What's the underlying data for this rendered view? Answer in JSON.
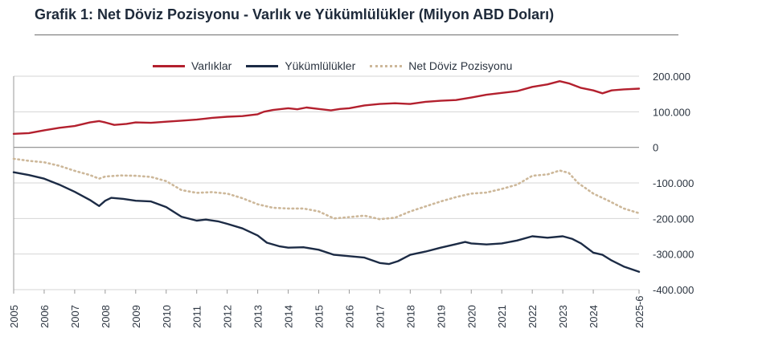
{
  "chart_data": {
    "type": "line",
    "title": "Grafik 1: Net Döviz Pozisyonu - Varlık ve Yükümlülükler (Milyon ABD Doları)",
    "ylim": [
      -400000,
      200000
    ],
    "yticks": [
      200000,
      100000,
      0,
      -100000,
      -200000,
      -300000,
      -400000
    ],
    "ytick_labels": [
      "200.000",
      "100.000",
      "0",
      "-100.000",
      "-200.000",
      "-300.000",
      "-400.000"
    ],
    "xlim": [
      2005,
      2025.5
    ],
    "xticks": [
      {
        "label": "2005",
        "value": 2005
      },
      {
        "label": "2006",
        "value": 2006
      },
      {
        "label": "2007",
        "value": 2007
      },
      {
        "label": "2008",
        "value": 2008
      },
      {
        "label": "2009",
        "value": 2009
      },
      {
        "label": "2010",
        "value": 2010
      },
      {
        "label": "2011",
        "value": 2011
      },
      {
        "label": "2012",
        "value": 2012
      },
      {
        "label": "2013",
        "value": 2013
      },
      {
        "label": "2014",
        "value": 2014
      },
      {
        "label": "2015",
        "value": 2015
      },
      {
        "label": "2016",
        "value": 2016
      },
      {
        "label": "2017",
        "value": 2017
      },
      {
        "label": "2018",
        "value": 2018
      },
      {
        "label": "2019",
        "value": 2019
      },
      {
        "label": "2020",
        "value": 2020
      },
      {
        "label": "2021",
        "value": 2021
      },
      {
        "label": "2022",
        "value": 2022
      },
      {
        "label": "2023",
        "value": 2023
      },
      {
        "label": "2024",
        "value": 2024
      },
      {
        "label": "2025-6",
        "value": 2025.5
      }
    ],
    "legend_position": "top",
    "grid": "horizontal",
    "series": [
      {
        "name": "Varlıklar",
        "color": "#b3202e",
        "style": "solid",
        "points": [
          [
            2005,
            38000
          ],
          [
            2005.5,
            40000
          ],
          [
            2006,
            48000
          ],
          [
            2006.5,
            55000
          ],
          [
            2007,
            60000
          ],
          [
            2007.5,
            70000
          ],
          [
            2007.8,
            74000
          ],
          [
            2008,
            70000
          ],
          [
            2008.3,
            63000
          ],
          [
            2008.7,
            66000
          ],
          [
            2009,
            70000
          ],
          [
            2009.5,
            69000
          ],
          [
            2010,
            72000
          ],
          [
            2010.5,
            75000
          ],
          [
            2011,
            78000
          ],
          [
            2011.5,
            83000
          ],
          [
            2012,
            86000
          ],
          [
            2012.5,
            88000
          ],
          [
            2013,
            93000
          ],
          [
            2013.2,
            100000
          ],
          [
            2013.5,
            105000
          ],
          [
            2014,
            110000
          ],
          [
            2014.3,
            107000
          ],
          [
            2014.6,
            112000
          ],
          [
            2015,
            108000
          ],
          [
            2015.4,
            104000
          ],
          [
            2015.7,
            108000
          ],
          [
            2016,
            110000
          ],
          [
            2016.5,
            118000
          ],
          [
            2017,
            122000
          ],
          [
            2017.5,
            124000
          ],
          [
            2018,
            122000
          ],
          [
            2018.5,
            128000
          ],
          [
            2019,
            131000
          ],
          [
            2019.5,
            133000
          ],
          [
            2020,
            140000
          ],
          [
            2020.5,
            148000
          ],
          [
            2021,
            153000
          ],
          [
            2021.5,
            158000
          ],
          [
            2022,
            170000
          ],
          [
            2022.5,
            177000
          ],
          [
            2022.9,
            186000
          ],
          [
            2023.2,
            180000
          ],
          [
            2023.6,
            167000
          ],
          [
            2024,
            160000
          ],
          [
            2024.3,
            152000
          ],
          [
            2024.6,
            160000
          ],
          [
            2025,
            163000
          ],
          [
            2025.5,
            165000
          ]
        ]
      },
      {
        "name": "Yükümlülükler",
        "color": "#1c2b45",
        "style": "solid",
        "points": [
          [
            2005,
            -70000
          ],
          [
            2005.5,
            -78000
          ],
          [
            2006,
            -88000
          ],
          [
            2006.5,
            -105000
          ],
          [
            2007,
            -125000
          ],
          [
            2007.5,
            -148000
          ],
          [
            2007.8,
            -165000
          ],
          [
            2008,
            -150000
          ],
          [
            2008.2,
            -142000
          ],
          [
            2008.6,
            -145000
          ],
          [
            2009,
            -150000
          ],
          [
            2009.5,
            -152000
          ],
          [
            2010,
            -168000
          ],
          [
            2010.5,
            -195000
          ],
          [
            2011,
            -206000
          ],
          [
            2011.3,
            -203000
          ],
          [
            2011.7,
            -208000
          ],
          [
            2012,
            -215000
          ],
          [
            2012.5,
            -228000
          ],
          [
            2013,
            -248000
          ],
          [
            2013.3,
            -268000
          ],
          [
            2013.7,
            -278000
          ],
          [
            2014,
            -282000
          ],
          [
            2014.5,
            -281000
          ],
          [
            2015,
            -288000
          ],
          [
            2015.5,
            -302000
          ],
          [
            2016,
            -306000
          ],
          [
            2016.5,
            -310000
          ],
          [
            2017,
            -325000
          ],
          [
            2017.3,
            -328000
          ],
          [
            2017.6,
            -320000
          ],
          [
            2018,
            -302000
          ],
          [
            2018.5,
            -293000
          ],
          [
            2019,
            -282000
          ],
          [
            2019.5,
            -272000
          ],
          [
            2019.8,
            -266000
          ],
          [
            2020,
            -270000
          ],
          [
            2020.5,
            -273000
          ],
          [
            2021,
            -270000
          ],
          [
            2021.5,
            -262000
          ],
          [
            2022,
            -250000
          ],
          [
            2022.5,
            -254000
          ],
          [
            2023,
            -250000
          ],
          [
            2023.3,
            -257000
          ],
          [
            2023.6,
            -270000
          ],
          [
            2024,
            -296000
          ],
          [
            2024.3,
            -302000
          ],
          [
            2024.6,
            -318000
          ],
          [
            2025,
            -335000
          ],
          [
            2025.5,
            -350000
          ]
        ]
      },
      {
        "name": "Net Döviz Pozisyonu",
        "color": "#cdb89a",
        "style": "dotted",
        "points": [
          [
            2005,
            -32000
          ],
          [
            2005.5,
            -38000
          ],
          [
            2006,
            -42000
          ],
          [
            2006.5,
            -52000
          ],
          [
            2007,
            -66000
          ],
          [
            2007.5,
            -78000
          ],
          [
            2007.8,
            -88000
          ],
          [
            2008,
            -82000
          ],
          [
            2008.5,
            -79000
          ],
          [
            2009,
            -80000
          ],
          [
            2009.5,
            -83000
          ],
          [
            2010,
            -95000
          ],
          [
            2010.5,
            -120000
          ],
          [
            2011,
            -128000
          ],
          [
            2011.5,
            -126000
          ],
          [
            2012,
            -130000
          ],
          [
            2012.5,
            -143000
          ],
          [
            2013,
            -160000
          ],
          [
            2013.5,
            -170000
          ],
          [
            2014,
            -172000
          ],
          [
            2014.5,
            -172000
          ],
          [
            2015,
            -180000
          ],
          [
            2015.5,
            -200000
          ],
          [
            2016,
            -196000
          ],
          [
            2016.5,
            -192000
          ],
          [
            2017,
            -202000
          ],
          [
            2017.5,
            -198000
          ],
          [
            2018,
            -180000
          ],
          [
            2018.5,
            -166000
          ],
          [
            2019,
            -152000
          ],
          [
            2019.5,
            -140000
          ],
          [
            2020,
            -130000
          ],
          [
            2020.5,
            -127000
          ],
          [
            2021,
            -117000
          ],
          [
            2021.5,
            -105000
          ],
          [
            2022,
            -80000
          ],
          [
            2022.5,
            -76000
          ],
          [
            2022.9,
            -65000
          ],
          [
            2023.2,
            -72000
          ],
          [
            2023.5,
            -100000
          ],
          [
            2024,
            -130000
          ],
          [
            2024.5,
            -150000
          ],
          [
            2025,
            -172000
          ],
          [
            2025.5,
            -185000
          ]
        ]
      }
    ]
  }
}
